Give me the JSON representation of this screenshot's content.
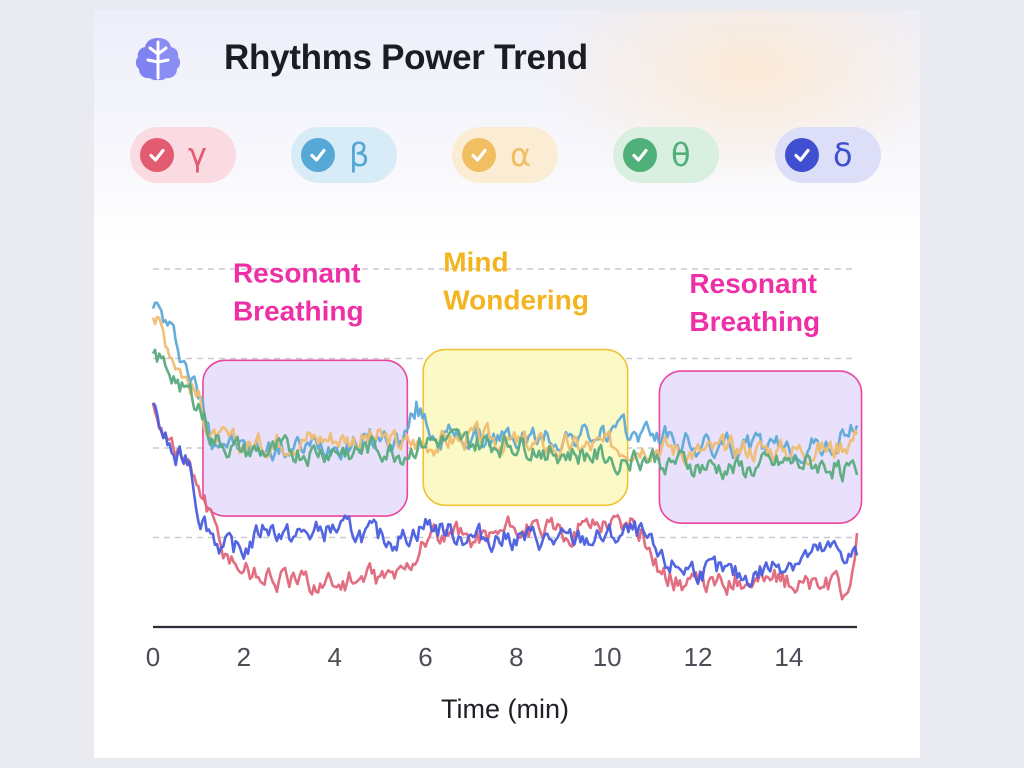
{
  "header": {
    "title": "Rhythms Power Trend",
    "icon": "brain-icon"
  },
  "chips": [
    {
      "symbol": "γ",
      "checked": true,
      "color": "#e35b70",
      "bg": "#f9dbe1"
    },
    {
      "symbol": "β",
      "checked": true,
      "color": "#56a8d6",
      "bg": "#d8ecf8"
    },
    {
      "symbol": "α",
      "checked": true,
      "color": "#f2be62",
      "bg": "#fbecd4"
    },
    {
      "symbol": "θ",
      "checked": true,
      "color": "#4fb07a",
      "bg": "#d9efe0"
    },
    {
      "symbol": "δ",
      "checked": true,
      "color": "#3f4fcf",
      "bg": "#dcdff7"
    }
  ],
  "chart_data": {
    "type": "line",
    "title": "",
    "xlabel": "Time (min)",
    "ylabel": "",
    "xlim": [
      0,
      15.5
    ],
    "ylim": [
      0,
      4
    ],
    "x_ticks": [
      "0",
      "2",
      "4",
      "6",
      "8",
      "10",
      "12",
      "14"
    ],
    "grid": "dashed horizontal",
    "series": [
      {
        "symbol": "β",
        "color": "#5fa9d8",
        "points": [
          [
            0,
            3.65
          ],
          [
            0.5,
            3.2
          ],
          [
            1,
            2.6
          ],
          [
            1.3,
            2.15
          ],
          [
            2,
            2.0
          ],
          [
            3,
            1.98
          ],
          [
            4,
            2.05
          ],
          [
            5,
            2.1
          ],
          [
            5.5,
            2.08
          ],
          [
            5.8,
            2.45
          ],
          [
            6.2,
            2.15
          ],
          [
            7,
            2.1
          ],
          [
            8,
            2.1
          ],
          [
            9,
            2.12
          ],
          [
            10,
            2.15
          ],
          [
            11,
            2.18
          ],
          [
            12,
            2.0
          ],
          [
            13,
            2.02
          ],
          [
            14,
            1.98
          ],
          [
            15,
            2.02
          ],
          [
            15.5,
            2.25
          ]
        ]
      },
      {
        "symbol": "α",
        "color": "#efbd72",
        "points": [
          [
            0,
            3.5
          ],
          [
            0.5,
            3.0
          ],
          [
            1,
            2.55
          ],
          [
            1.3,
            2.1
          ],
          [
            2,
            2.02
          ],
          [
            3,
            2.1
          ],
          [
            4,
            2.12
          ],
          [
            5,
            2.1
          ],
          [
            5.5,
            2.05
          ],
          [
            6,
            2.05
          ],
          [
            7,
            2.12
          ],
          [
            8,
            2.05
          ],
          [
            9,
            2.0
          ],
          [
            10,
            2.02
          ],
          [
            11,
            2.05
          ],
          [
            12,
            1.95
          ],
          [
            13,
            2.0
          ],
          [
            14,
            1.98
          ],
          [
            15,
            2.0
          ],
          [
            15.5,
            2.15
          ]
        ]
      },
      {
        "symbol": "θ",
        "color": "#5aab7e",
        "points": [
          [
            0,
            3.05
          ],
          [
            0.5,
            2.8
          ],
          [
            1,
            2.5
          ],
          [
            1.3,
            2.1
          ],
          [
            2,
            1.95
          ],
          [
            3,
            1.95
          ],
          [
            4,
            1.98
          ],
          [
            5,
            2.0
          ],
          [
            5.5,
            1.95
          ],
          [
            6,
            2.08
          ],
          [
            7,
            2.05
          ],
          [
            8,
            2.05
          ],
          [
            9,
            1.95
          ],
          [
            10,
            1.9
          ],
          [
            11,
            1.9
          ],
          [
            12,
            1.8
          ],
          [
            13,
            1.75
          ],
          [
            14,
            1.82
          ],
          [
            15,
            1.8
          ],
          [
            15.5,
            1.7
          ]
        ]
      },
      {
        "symbol": "γ",
        "color": "#e0667a",
        "points": [
          [
            0,
            2.45
          ],
          [
            0.5,
            2.0
          ],
          [
            1,
            1.6
          ],
          [
            1.5,
            0.9
          ],
          [
            2,
            0.65
          ],
          [
            3,
            0.5
          ],
          [
            4,
            0.5
          ],
          [
            5,
            0.55
          ],
          [
            5.5,
            0.6
          ],
          [
            6,
            1.0
          ],
          [
            7,
            1.0
          ],
          [
            8,
            1.1
          ],
          [
            9,
            1.05
          ],
          [
            10,
            1.2
          ],
          [
            10.7,
            1.1
          ],
          [
            11.2,
            0.6
          ],
          [
            12,
            0.45
          ],
          [
            13,
            0.55
          ],
          [
            14,
            0.5
          ],
          [
            15,
            0.45
          ],
          [
            15.3,
            0.35
          ],
          [
            15.5,
            1.05
          ]
        ]
      },
      {
        "symbol": "δ",
        "color": "#4a5ee0",
        "points": [
          [
            0,
            2.4
          ],
          [
            0.5,
            1.85
          ],
          [
            0.8,
            1.9
          ],
          [
            1,
            1.3
          ],
          [
            1.5,
            0.9
          ],
          [
            2,
            0.85
          ],
          [
            2.5,
            1.15
          ],
          [
            3,
            1.0
          ],
          [
            4,
            1.1
          ],
          [
            5,
            1.0
          ],
          [
            5.5,
            1.0
          ],
          [
            6,
            1.15
          ],
          [
            7,
            1.0
          ],
          [
            8,
            1.0
          ],
          [
            9,
            0.95
          ],
          [
            10,
            1.0
          ],
          [
            10.7,
            1.05
          ],
          [
            11.2,
            0.7
          ],
          [
            12,
            0.65
          ],
          [
            13,
            0.55
          ],
          [
            14,
            0.75
          ],
          [
            15,
            0.85
          ],
          [
            15.5,
            0.8
          ]
        ]
      }
    ],
    "annotations": [
      {
        "text": [
          "Resonant",
          "Breathing"
        ],
        "x_range": [
          1.1,
          5.6
        ],
        "y_range": [
          1.24,
          2.98
        ],
        "color": "#ef2fa6",
        "fill": "#e9e1fb",
        "stroke": "#e9479f"
      },
      {
        "text": [
          "Mind",
          "Wondering"
        ],
        "x_range": [
          5.95,
          10.45
        ],
        "y_range": [
          1.36,
          3.1
        ],
        "color": "#f3b51f",
        "fill": "#fbfac7",
        "stroke": "#f1c233"
      },
      {
        "text": [
          "Resonant",
          "Breathing"
        ],
        "x_range": [
          11.15,
          15.6
        ],
        "y_range": [
          1.16,
          2.86
        ],
        "color": "#ef2fa6",
        "fill": "#e9e1fb",
        "stroke": "#e9479f"
      }
    ]
  }
}
